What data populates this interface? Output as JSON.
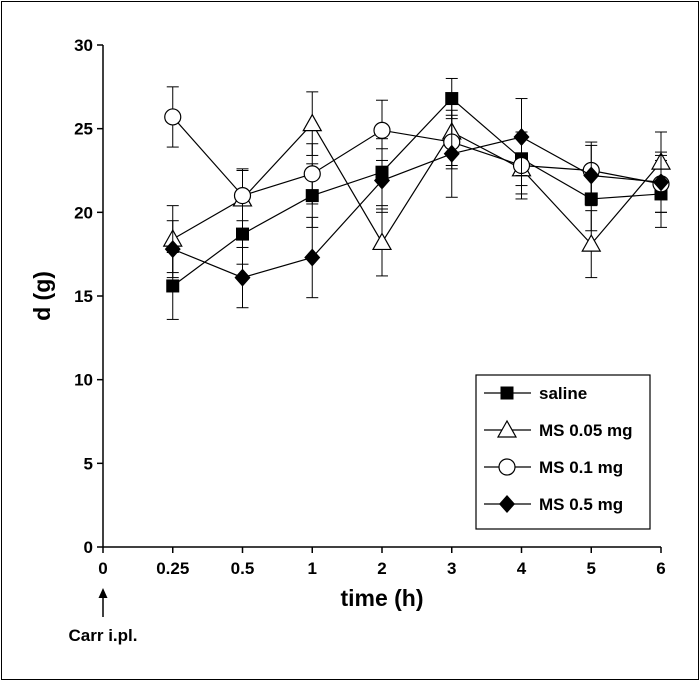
{
  "chart_data": {
    "type": "line",
    "xlabel": "time (h)",
    "ylabel": "d (g)",
    "ylim": [
      0,
      30
    ],
    "yticks": [
      0,
      5,
      10,
      15,
      20,
      25,
      30
    ],
    "categories": [
      "0",
      "0.25",
      "0.5",
      "1",
      "2",
      "3",
      "4",
      "5",
      "6"
    ],
    "annotation": "Carr i.pl.",
    "legend_position": "bottom-right",
    "grid": false,
    "series": [
      {
        "name": "saline",
        "marker": "square-filled",
        "x": [
          "0.25",
          "0.5",
          "1",
          "2",
          "3",
          "4",
          "5",
          "6"
        ],
        "values": [
          15.6,
          18.7,
          21.0,
          22.4,
          26.8,
          23.2,
          20.8,
          21.1
        ],
        "errors": [
          2.0,
          1.8,
          1.9,
          2.0,
          1.2,
          1.6,
          1.9,
          2.0
        ]
      },
      {
        "name": "MS 0.05 mg",
        "marker": "triangle-open",
        "x": [
          "0.25",
          "0.5",
          "1",
          "2",
          "3",
          "4",
          "5",
          "6"
        ],
        "values": [
          18.4,
          20.8,
          25.3,
          18.2,
          24.8,
          22.6,
          18.1,
          23.0
        ],
        "errors": [
          2.0,
          1.8,
          1.9,
          2.0,
          2.0,
          1.8,
          2.0,
          1.8
        ]
      },
      {
        "name": "MS 0.1 mg",
        "marker": "circle-open",
        "x": [
          "0.25",
          "0.5",
          "1",
          "2",
          "3",
          "4",
          "5",
          "6"
        ],
        "values": [
          25.7,
          21.0,
          22.3,
          24.9,
          24.2,
          22.8,
          22.5,
          21.7
        ],
        "errors": [
          1.8,
          1.5,
          1.8,
          1.8,
          1.6,
          1.7,
          1.7,
          1.7
        ]
      },
      {
        "name": "MS 0.5 mg",
        "marker": "diamond-filled",
        "x": [
          "0.25",
          "0.5",
          "1",
          "2",
          "3",
          "4",
          "5",
          "6"
        ],
        "values": [
          17.8,
          16.1,
          17.3,
          21.9,
          23.5,
          24.5,
          22.2,
          21.8
        ],
        "errors": [
          1.7,
          1.8,
          2.4,
          1.9,
          2.6,
          2.3,
          1.8,
          1.8
        ]
      }
    ],
    "colors": {
      "line": "#000000",
      "background": "#ffffff"
    }
  }
}
